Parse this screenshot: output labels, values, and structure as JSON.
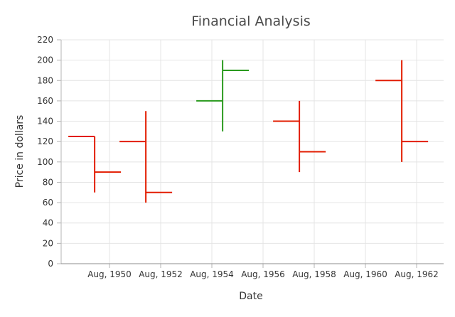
{
  "chart_data": {
    "type": "hilo-open-close",
    "title": "Financial Analysis",
    "xlabel": "Date",
    "ylabel": "Price in dollars",
    "ylim": [
      0,
      220
    ],
    "y_ticks": [
      0,
      20,
      40,
      60,
      80,
      100,
      120,
      140,
      160,
      180,
      200,
      220
    ],
    "x_ticks": [
      "Aug, 1950",
      "Aug, 1952",
      "Aug, 1954",
      "Aug, 1956",
      "Aug, 1958",
      "Aug, 1960",
      "Aug, 1962"
    ],
    "grid": true,
    "bearish_color": "#e21c00",
    "bullish_color": "#2a9a1e",
    "points": [
      {
        "date": "1950-01",
        "open": 125,
        "high": 125,
        "low": 70,
        "close": 90
      },
      {
        "date": "1952-01",
        "open": 120,
        "high": 150,
        "low": 60,
        "close": 70
      },
      {
        "date": "1955-01",
        "open": 160,
        "high": 200,
        "low": 130,
        "close": 190
      },
      {
        "date": "1958-01",
        "open": 140,
        "high": 160,
        "low": 90,
        "close": 110
      },
      {
        "date": "1962-01",
        "open": 180,
        "high": 200,
        "low": 100,
        "close": 120
      }
    ]
  }
}
